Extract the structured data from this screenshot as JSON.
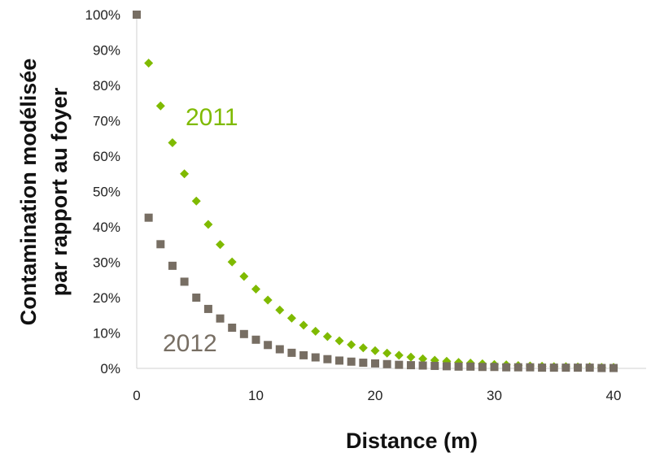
{
  "chart_data": {
    "type": "scatter",
    "xlabel": "Distance (m)",
    "ylabel_lines": [
      "Contamination modélisée",
      "par rapport au foyer"
    ],
    "xlim": [
      0,
      40
    ],
    "ylim": [
      0,
      100
    ],
    "x_ticks": [
      0,
      10,
      20,
      30,
      40
    ],
    "y_ticks": [
      0,
      10,
      20,
      30,
      40,
      50,
      60,
      70,
      80,
      90,
      100
    ],
    "y_tick_suffix": "%",
    "grid": false,
    "legend": "none",
    "series": [
      {
        "name": "2011",
        "marker": "diamond",
        "color": "#7fba00",
        "x": [
          1,
          2,
          3,
          4,
          5,
          6,
          7,
          8,
          9,
          10,
          11,
          12,
          13,
          14,
          15,
          16,
          17,
          18,
          19,
          20,
          21,
          22,
          23,
          24,
          25,
          26,
          27,
          28,
          29,
          30,
          31,
          32,
          33,
          34,
          35,
          36,
          37,
          38,
          39,
          40
        ],
        "y": [
          86.3,
          74.2,
          63.8,
          55.0,
          47.3,
          40.7,
          35.0,
          30.1,
          26.0,
          22.4,
          19.3,
          16.5,
          14.2,
          12.2,
          10.5,
          9.0,
          7.8,
          6.7,
          5.8,
          5.0,
          4.3,
          3.7,
          3.2,
          2.7,
          2.3,
          2.0,
          1.7,
          1.5,
          1.3,
          1.1,
          1.0,
          0.8,
          0.7,
          0.6,
          0.5,
          0.5,
          0.4,
          0.4,
          0.3,
          0.3
        ]
      },
      {
        "name": "2012",
        "marker": "square",
        "color": "#776e63",
        "x": [
          0,
          1,
          2,
          3,
          4,
          5,
          6,
          7,
          8,
          9,
          10,
          11,
          12,
          13,
          14,
          15,
          16,
          17,
          18,
          19,
          20,
          21,
          22,
          23,
          24,
          25,
          26,
          27,
          28,
          29,
          30,
          31,
          32,
          33,
          34,
          35,
          36,
          37,
          38,
          39,
          40
        ],
        "y": [
          100,
          42.6,
          35.1,
          29.0,
          24.5,
          20.0,
          16.8,
          14.1,
          11.5,
          9.7,
          8.1,
          6.6,
          5.4,
          4.4,
          3.7,
          3.1,
          2.6,
          2.2,
          1.9,
          1.6,
          1.4,
          1.2,
          1.0,
          0.9,
          0.8,
          0.7,
          0.6,
          0.5,
          0.5,
          0.4,
          0.4,
          0.3,
          0.3,
          0.3,
          0.2,
          0.2,
          0.2,
          0.2,
          0.2,
          0.1,
          0.1
        ]
      }
    ]
  }
}
